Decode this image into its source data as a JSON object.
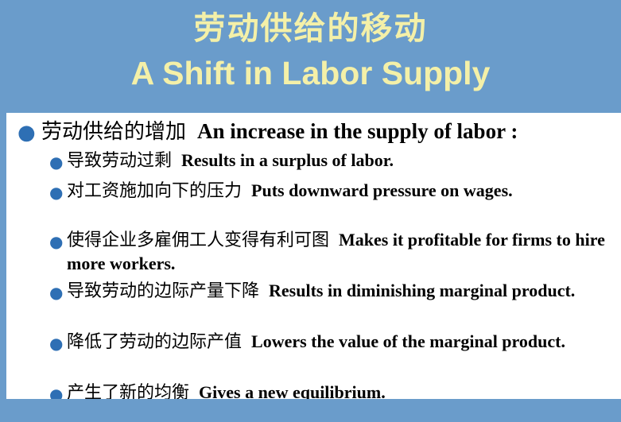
{
  "slide": {
    "title_zh": "劳动供给的移动",
    "title_en": "A Shift in Labor Supply"
  },
  "main_bullet": {
    "zh": "劳动供给的增加",
    "en": "An increase in the supply of labor :"
  },
  "sub_bullets": [
    {
      "zh": "导致劳动过剩",
      "en": "Results in a surplus of labor."
    },
    {
      "zh": "对工资施加向下的压力",
      "en": "Puts downward pressure on wages."
    },
    {
      "zh": "使得企业多雇佣工人变得有利可图",
      "en": "Makes it profitable for firms to hire more workers."
    },
    {
      "zh": "导致劳动的边际产量下降",
      "en": "Results in diminishing marginal product."
    },
    {
      "zh": "降低了劳动的边际产值",
      "en": "Lowers the value of the marginal product."
    },
    {
      "zh": "产生了新的均衡",
      "en": "Gives a new equilibrium."
    }
  ],
  "colors": {
    "background": "#6a9ccb",
    "title_text": "#f4f0a8",
    "bullet": "#2e6fb4",
    "panel": "#ffffff"
  }
}
